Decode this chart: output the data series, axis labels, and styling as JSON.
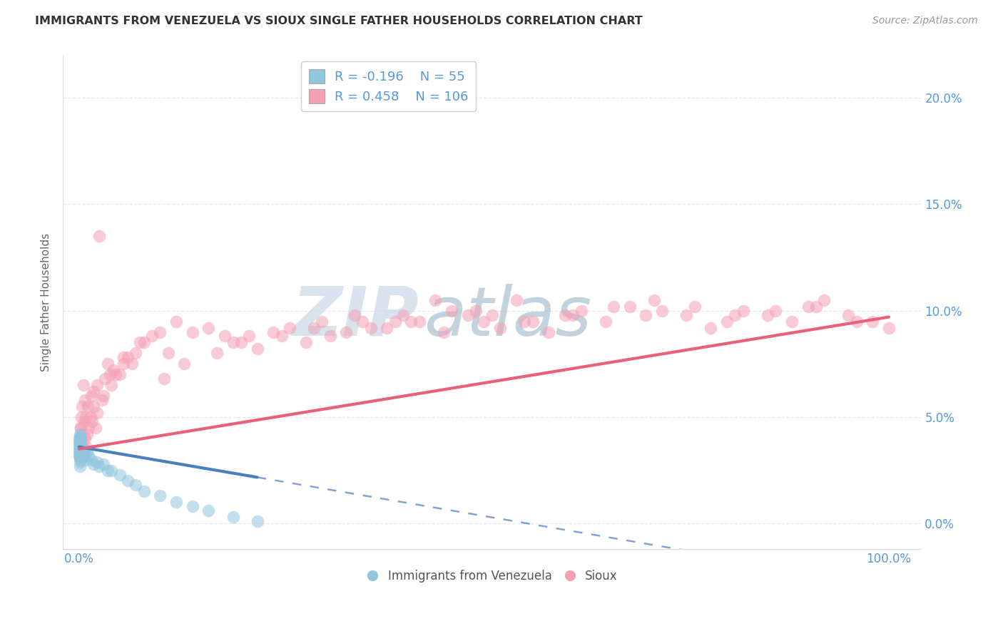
{
  "title": "IMMIGRANTS FROM VENEZUELA VS SIOUX SINGLE FATHER HOUSEHOLDS CORRELATION CHART",
  "source": "Source: ZipAtlas.com",
  "ylabel": "Single Father Households",
  "watermark_ZIP": "ZIP",
  "watermark_atlas": "atlas",
  "legend_blue_R": "-0.196",
  "legend_blue_N": "55",
  "legend_pink_R": "0.458",
  "legend_pink_N": "106",
  "blue_scatter_color": "#92c5de",
  "pink_scatter_color": "#f4a0b5",
  "blue_line_color": "#4a7fc1",
  "pink_line_color": "#e8607a",
  "watermark_ZIP_color": "#c8d8e8",
  "watermark_atlas_color": "#a8c0d0",
  "title_color": "#333333",
  "source_color": "#999999",
  "axis_tick_color": "#5599dd",
  "ylabel_color": "#666666",
  "grid_color": "#e8e8e8",
  "legend_border_color": "#cccccc",
  "background_color": "#ffffff",
  "xlim": [
    -2.0,
    104.0
  ],
  "ylim": [
    -1.2,
    22.0
  ],
  "ytick_vals": [
    0,
    5,
    10,
    15,
    20
  ],
  "ytick_labels": [
    "0.0%",
    "5.0%",
    "10.0%",
    "15.0%",
    "20.0%"
  ],
  "xtick_vals": [
    0,
    25,
    50,
    75,
    100
  ],
  "xtick_labels": [
    "0.0%",
    "",
    "",
    "",
    "100.0%"
  ],
  "blue_x": [
    0.05,
    0.05,
    0.05,
    0.05,
    0.05,
    0.06,
    0.06,
    0.06,
    0.06,
    0.07,
    0.07,
    0.07,
    0.08,
    0.08,
    0.09,
    0.09,
    0.1,
    0.1,
    0.1,
    0.1,
    0.12,
    0.12,
    0.13,
    0.15,
    0.15,
    0.17,
    0.2,
    0.2,
    0.25,
    0.3,
    0.35,
    0.4,
    0.5,
    0.6,
    0.7,
    0.8,
    1.0,
    1.2,
    1.5,
    1.8,
    2.2,
    2.5,
    3.0,
    3.5,
    4.0,
    5.0,
    6.0,
    7.0,
    8.0,
    10.0,
    12.0,
    14.0,
    16.0,
    19.0,
    22.0
  ],
  "blue_y": [
    3.6,
    3.8,
    4.0,
    3.4,
    3.2,
    3.9,
    3.5,
    3.1,
    4.1,
    3.7,
    3.3,
    2.9,
    3.8,
    3.4,
    4.0,
    3.2,
    3.9,
    3.5,
    3.1,
    2.7,
    4.2,
    3.6,
    3.8,
    3.5,
    3.0,
    3.7,
    3.8,
    3.2,
    3.6,
    3.4,
    3.5,
    3.3,
    3.2,
    3.5,
    3.3,
    3.0,
    3.4,
    3.2,
    3.0,
    2.8,
    2.9,
    2.7,
    2.8,
    2.5,
    2.5,
    2.3,
    2.0,
    1.8,
    1.5,
    1.3,
    1.0,
    0.8,
    0.6,
    0.3,
    0.1
  ],
  "pink_x": [
    0.1,
    0.2,
    0.3,
    0.4,
    0.5,
    0.6,
    0.7,
    0.8,
    0.9,
    1.0,
    1.2,
    1.4,
    1.6,
    1.8,
    2.0,
    2.2,
    2.5,
    2.8,
    3.0,
    3.5,
    4.0,
    4.5,
    5.0,
    5.5,
    6.0,
    7.0,
    8.0,
    9.0,
    10.0,
    12.0,
    14.0,
    16.0,
    18.0,
    20.0,
    22.0,
    25.0,
    28.0,
    30.0,
    33.0,
    35.0,
    38.0,
    40.0,
    42.0,
    45.0,
    48.0,
    50.0,
    52.0,
    55.0,
    58.0,
    60.0,
    62.0,
    65.0,
    68.0,
    70.0,
    72.0,
    75.0,
    78.0,
    80.0,
    82.0,
    85.0,
    88.0,
    90.0,
    92.0,
    95.0,
    98.0,
    100.0,
    0.15,
    0.35,
    0.55,
    1.1,
    1.5,
    2.2,
    3.2,
    4.2,
    5.5,
    7.5,
    10.5,
    13.0,
    17.0,
    21.0,
    26.0,
    31.0,
    36.0,
    41.0,
    46.0,
    51.0,
    56.0,
    61.0,
    66.0,
    71.0,
    76.0,
    81.0,
    86.0,
    91.0,
    96.0,
    0.25,
    0.75,
    1.8,
    3.8,
    6.5,
    11.0,
    19.0,
    24.0,
    29.0,
    34.0,
    39.0,
    44.0,
    49.0,
    54.0
  ],
  "pink_y": [
    3.8,
    4.5,
    4.2,
    3.9,
    3.5,
    4.8,
    4.0,
    5.0,
    3.6,
    4.2,
    4.5,
    5.0,
    4.8,
    5.5,
    4.5,
    5.2,
    13.5,
    5.8,
    6.0,
    7.5,
    6.5,
    7.0,
    7.0,
    7.5,
    7.8,
    8.0,
    8.5,
    8.8,
    9.0,
    9.5,
    9.0,
    9.2,
    8.8,
    8.5,
    8.2,
    8.8,
    8.5,
    9.5,
    9.0,
    9.5,
    9.2,
    9.8,
    9.5,
    9.0,
    9.8,
    9.5,
    9.2,
    9.5,
    9.0,
    9.8,
    10.0,
    9.5,
    10.2,
    9.8,
    10.0,
    9.8,
    9.2,
    9.5,
    10.0,
    9.8,
    9.5,
    10.2,
    10.5,
    9.8,
    9.5,
    9.2,
    4.5,
    5.5,
    6.5,
    5.5,
    6.0,
    6.5,
    6.8,
    7.2,
    7.8,
    8.5,
    6.8,
    7.5,
    8.0,
    8.8,
    9.2,
    8.8,
    9.2,
    9.5,
    10.0,
    9.8,
    9.5,
    9.8,
    10.2,
    10.5,
    10.2,
    9.8,
    10.0,
    10.2,
    9.5,
    5.0,
    5.8,
    6.2,
    7.0,
    7.5,
    8.0,
    8.5,
    9.0,
    9.2,
    9.8,
    9.5,
    10.5,
    10.0,
    10.5
  ],
  "blue_slope": -0.065,
  "blue_intercept": 3.6,
  "blue_solid_end": 22.0,
  "pink_slope": 0.062,
  "pink_intercept": 3.5,
  "legend_bottom_labels": [
    "Immigrants from Venezuela",
    "Sioux"
  ]
}
